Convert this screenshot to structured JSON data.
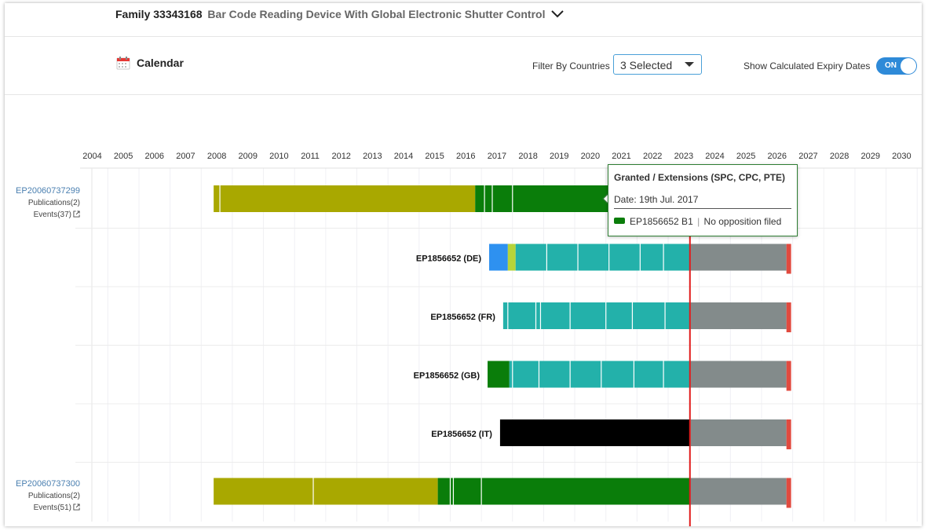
{
  "header": {
    "family_id": "Family 33343168",
    "family_title": "Bar Code Reading Device With Global Electronic Shutter Control"
  },
  "toolbar": {
    "calendar_label": "Calendar",
    "filter_label": "Filter By Countries",
    "filter_value": "3 Selected",
    "expiry_label": "Show Calculated Expiry Dates",
    "toggle_label": "ON"
  },
  "colors": {
    "application": "#a9a800",
    "grant": "#0a7d0a",
    "teal": "#23b1aa",
    "blue": "#2e91f0",
    "lime": "#b6d43a",
    "black": "#000000",
    "expiry_grey": "#838b8b",
    "expiry_end": "#e14a3f",
    "today_line": "#e11b1b"
  },
  "timeline": {
    "years": [
      "2004",
      "2005",
      "2006",
      "2007",
      "2008",
      "2009",
      "2010",
      "2011",
      "2012",
      "2013",
      "2014",
      "2015",
      "2016",
      "2017",
      "2018",
      "2019",
      "2020",
      "2021",
      "2022",
      "2023",
      "2024",
      "2025",
      "2026",
      "2027",
      "2028",
      "2029",
      "2030"
    ],
    "today": 2023.2,
    "rows": [
      {
        "label": "",
        "family": {
          "number": "EP20060737299",
          "publications": "Publications(2)",
          "events": "Events(37)"
        },
        "segments": [
          {
            "from": 2007.9,
            "to": 2016.3,
            "color": "application"
          },
          {
            "from": 2016.3,
            "to": 2023.2,
            "color": "grant"
          },
          {
            "from": 2023.2,
            "to": 2026.3,
            "color": "expiry_grey"
          },
          {
            "from": 2026.3,
            "to": 2026.45,
            "color": "expiry_end"
          }
        ],
        "ticks": [
          2008.1,
          2016.6,
          2016.85,
          2017.5
        ]
      },
      {
        "label": "EP1856652 (DE)",
        "segments": [
          {
            "from": 2016.75,
            "to": 2017.35,
            "color": "blue"
          },
          {
            "from": 2017.35,
            "to": 2017.6,
            "color": "lime"
          },
          {
            "from": 2017.6,
            "to": 2023.2,
            "color": "teal"
          },
          {
            "from": 2023.2,
            "to": 2026.3,
            "color": "expiry_grey"
          },
          {
            "from": 2026.3,
            "to": 2026.45,
            "color": "expiry_end"
          }
        ],
        "ticks": [
          2018.6,
          2019.6,
          2020.6,
          2021.6,
          2022.35
        ]
      },
      {
        "label": "EP1856652 (FR)",
        "segments": [
          {
            "from": 2017.2,
            "to": 2023.2,
            "color": "teal"
          },
          {
            "from": 2023.2,
            "to": 2026.3,
            "color": "expiry_grey"
          },
          {
            "from": 2026.3,
            "to": 2026.45,
            "color": "expiry_end"
          }
        ],
        "ticks": [
          2017.35,
          2018.25,
          2018.4,
          2019.35,
          2020.5,
          2021.35,
          2022.4
        ]
      },
      {
        "label": "EP1856652 (GB)",
        "segments": [
          {
            "from": 2016.7,
            "to": 2017.4,
            "color": "grant"
          },
          {
            "from": 2017.4,
            "to": 2023.2,
            "color": "teal"
          },
          {
            "from": 2023.2,
            "to": 2026.3,
            "color": "expiry_grey"
          },
          {
            "from": 2026.3,
            "to": 2026.45,
            "color": "expiry_end"
          }
        ],
        "ticks": [
          2017.5,
          2018.35,
          2019.35,
          2020.35,
          2021.4,
          2022.35
        ]
      },
      {
        "label": "EP1856652 (IT)",
        "segments": [
          {
            "from": 2017.1,
            "to": 2023.2,
            "color": "black"
          },
          {
            "from": 2023.2,
            "to": 2026.3,
            "color": "expiry_grey"
          },
          {
            "from": 2026.3,
            "to": 2026.45,
            "color": "expiry_end"
          }
        ],
        "ticks": []
      },
      {
        "label": "",
        "family": {
          "number": "EP20060737300",
          "publications": "Publications(2)",
          "events": "Events(51)"
        },
        "segments": [
          {
            "from": 2007.9,
            "to": 2015.1,
            "color": "application"
          },
          {
            "from": 2015.1,
            "to": 2023.2,
            "color": "grant"
          },
          {
            "from": 2023.2,
            "to": 2026.3,
            "color": "expiry_grey"
          },
          {
            "from": 2026.3,
            "to": 2026.45,
            "color": "expiry_end"
          }
        ],
        "ticks": [
          2011.1,
          2015.5,
          2015.6,
          2016.5
        ]
      }
    ]
  },
  "tooltip": {
    "title": "Granted / Extensions (SPC, CPC, PTE)",
    "date": "Date: 19th Jul. 2017",
    "publication": "EP1856652 B1",
    "status": "No opposition filed"
  }
}
